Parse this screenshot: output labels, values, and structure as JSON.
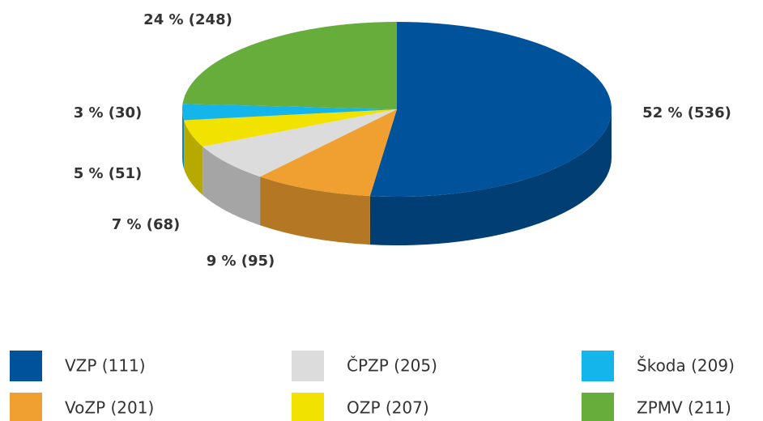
{
  "chart_data": {
    "type": "pie",
    "categories": [
      "VZP (111)",
      "VoZP (201)",
      "ČPZP (205)",
      "OZP (207)",
      "Škoda (209)",
      "ZPMV (211)"
    ],
    "values": [
      52,
      9,
      7,
      5,
      3,
      24
    ],
    "value_labels": [
      "52 % (536)",
      "9 % (95)",
      "7 % (68)",
      "5 % (51)",
      "3 % (30)",
      "24 % (248)"
    ],
    "colors": [
      "#00539b",
      "#f0a030",
      "#dcdcdc",
      "#f2e200",
      "#13b5ea",
      "#66ad3c"
    ]
  }
}
